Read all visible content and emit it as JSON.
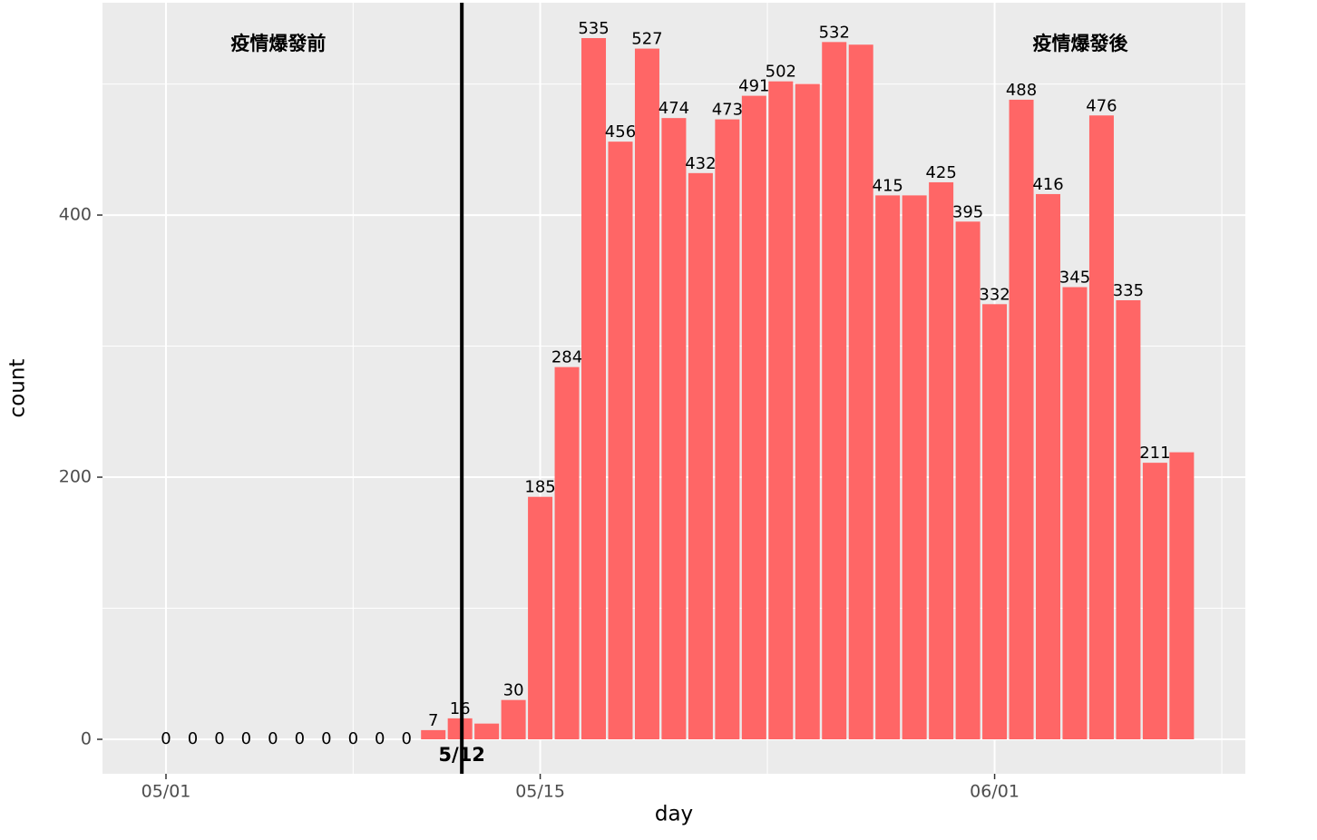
{
  "chart_data": {
    "type": "bar",
    "x_label": "day",
    "y_label": "count",
    "categories": [
      "05/01",
      "05/02",
      "05/03",
      "05/04",
      "05/05",
      "05/06",
      "05/07",
      "05/08",
      "05/09",
      "05/10",
      "05/11",
      "05/12",
      "05/13",
      "05/14",
      "05/15",
      "05/16",
      "05/17",
      "05/18",
      "05/19",
      "05/20",
      "05/21",
      "05/22",
      "05/23",
      "05/24",
      "05/25",
      "05/26",
      "05/27",
      "05/28",
      "05/29",
      "05/30",
      "05/31",
      "06/01",
      "06/02",
      "06/03",
      "06/04",
      "06/05",
      "06/06",
      "06/07",
      "06/08"
    ],
    "values": [
      0,
      0,
      0,
      0,
      0,
      0,
      0,
      0,
      0,
      0,
      7,
      16,
      12,
      30,
      185,
      284,
      535,
      456,
      527,
      474,
      432,
      473,
      491,
      502,
      500,
      532,
      530,
      415,
      415,
      425,
      395,
      332,
      488,
      416,
      345,
      476,
      335,
      211,
      219
    ],
    "value_labels": [
      0,
      0,
      0,
      0,
      0,
      0,
      0,
      0,
      0,
      0,
      7,
      16,
      null,
      30,
      185,
      284,
      535,
      456,
      527,
      474,
      432,
      473,
      491,
      502,
      null,
      532,
      null,
      415,
      null,
      425,
      395,
      332,
      488,
      416,
      345,
      476,
      335,
      211,
      null
    ],
    "color": "#ff6666",
    "ylim": [
      -26.3,
      562
    ],
    "yticks": [
      0,
      200,
      400
    ],
    "yminor": [
      100,
      300,
      500
    ],
    "xticks": [
      "05/01",
      "05/15",
      "06/01"
    ],
    "grid": true,
    "vline": {
      "x": "05/12",
      "label": "5/12"
    },
    "annotations": [
      {
        "x": "05/05",
        "y": 530,
        "text": "疫情爆發前"
      },
      {
        "x": "06/04",
        "y": 530,
        "text": "疫情爆發後"
      }
    ]
  }
}
